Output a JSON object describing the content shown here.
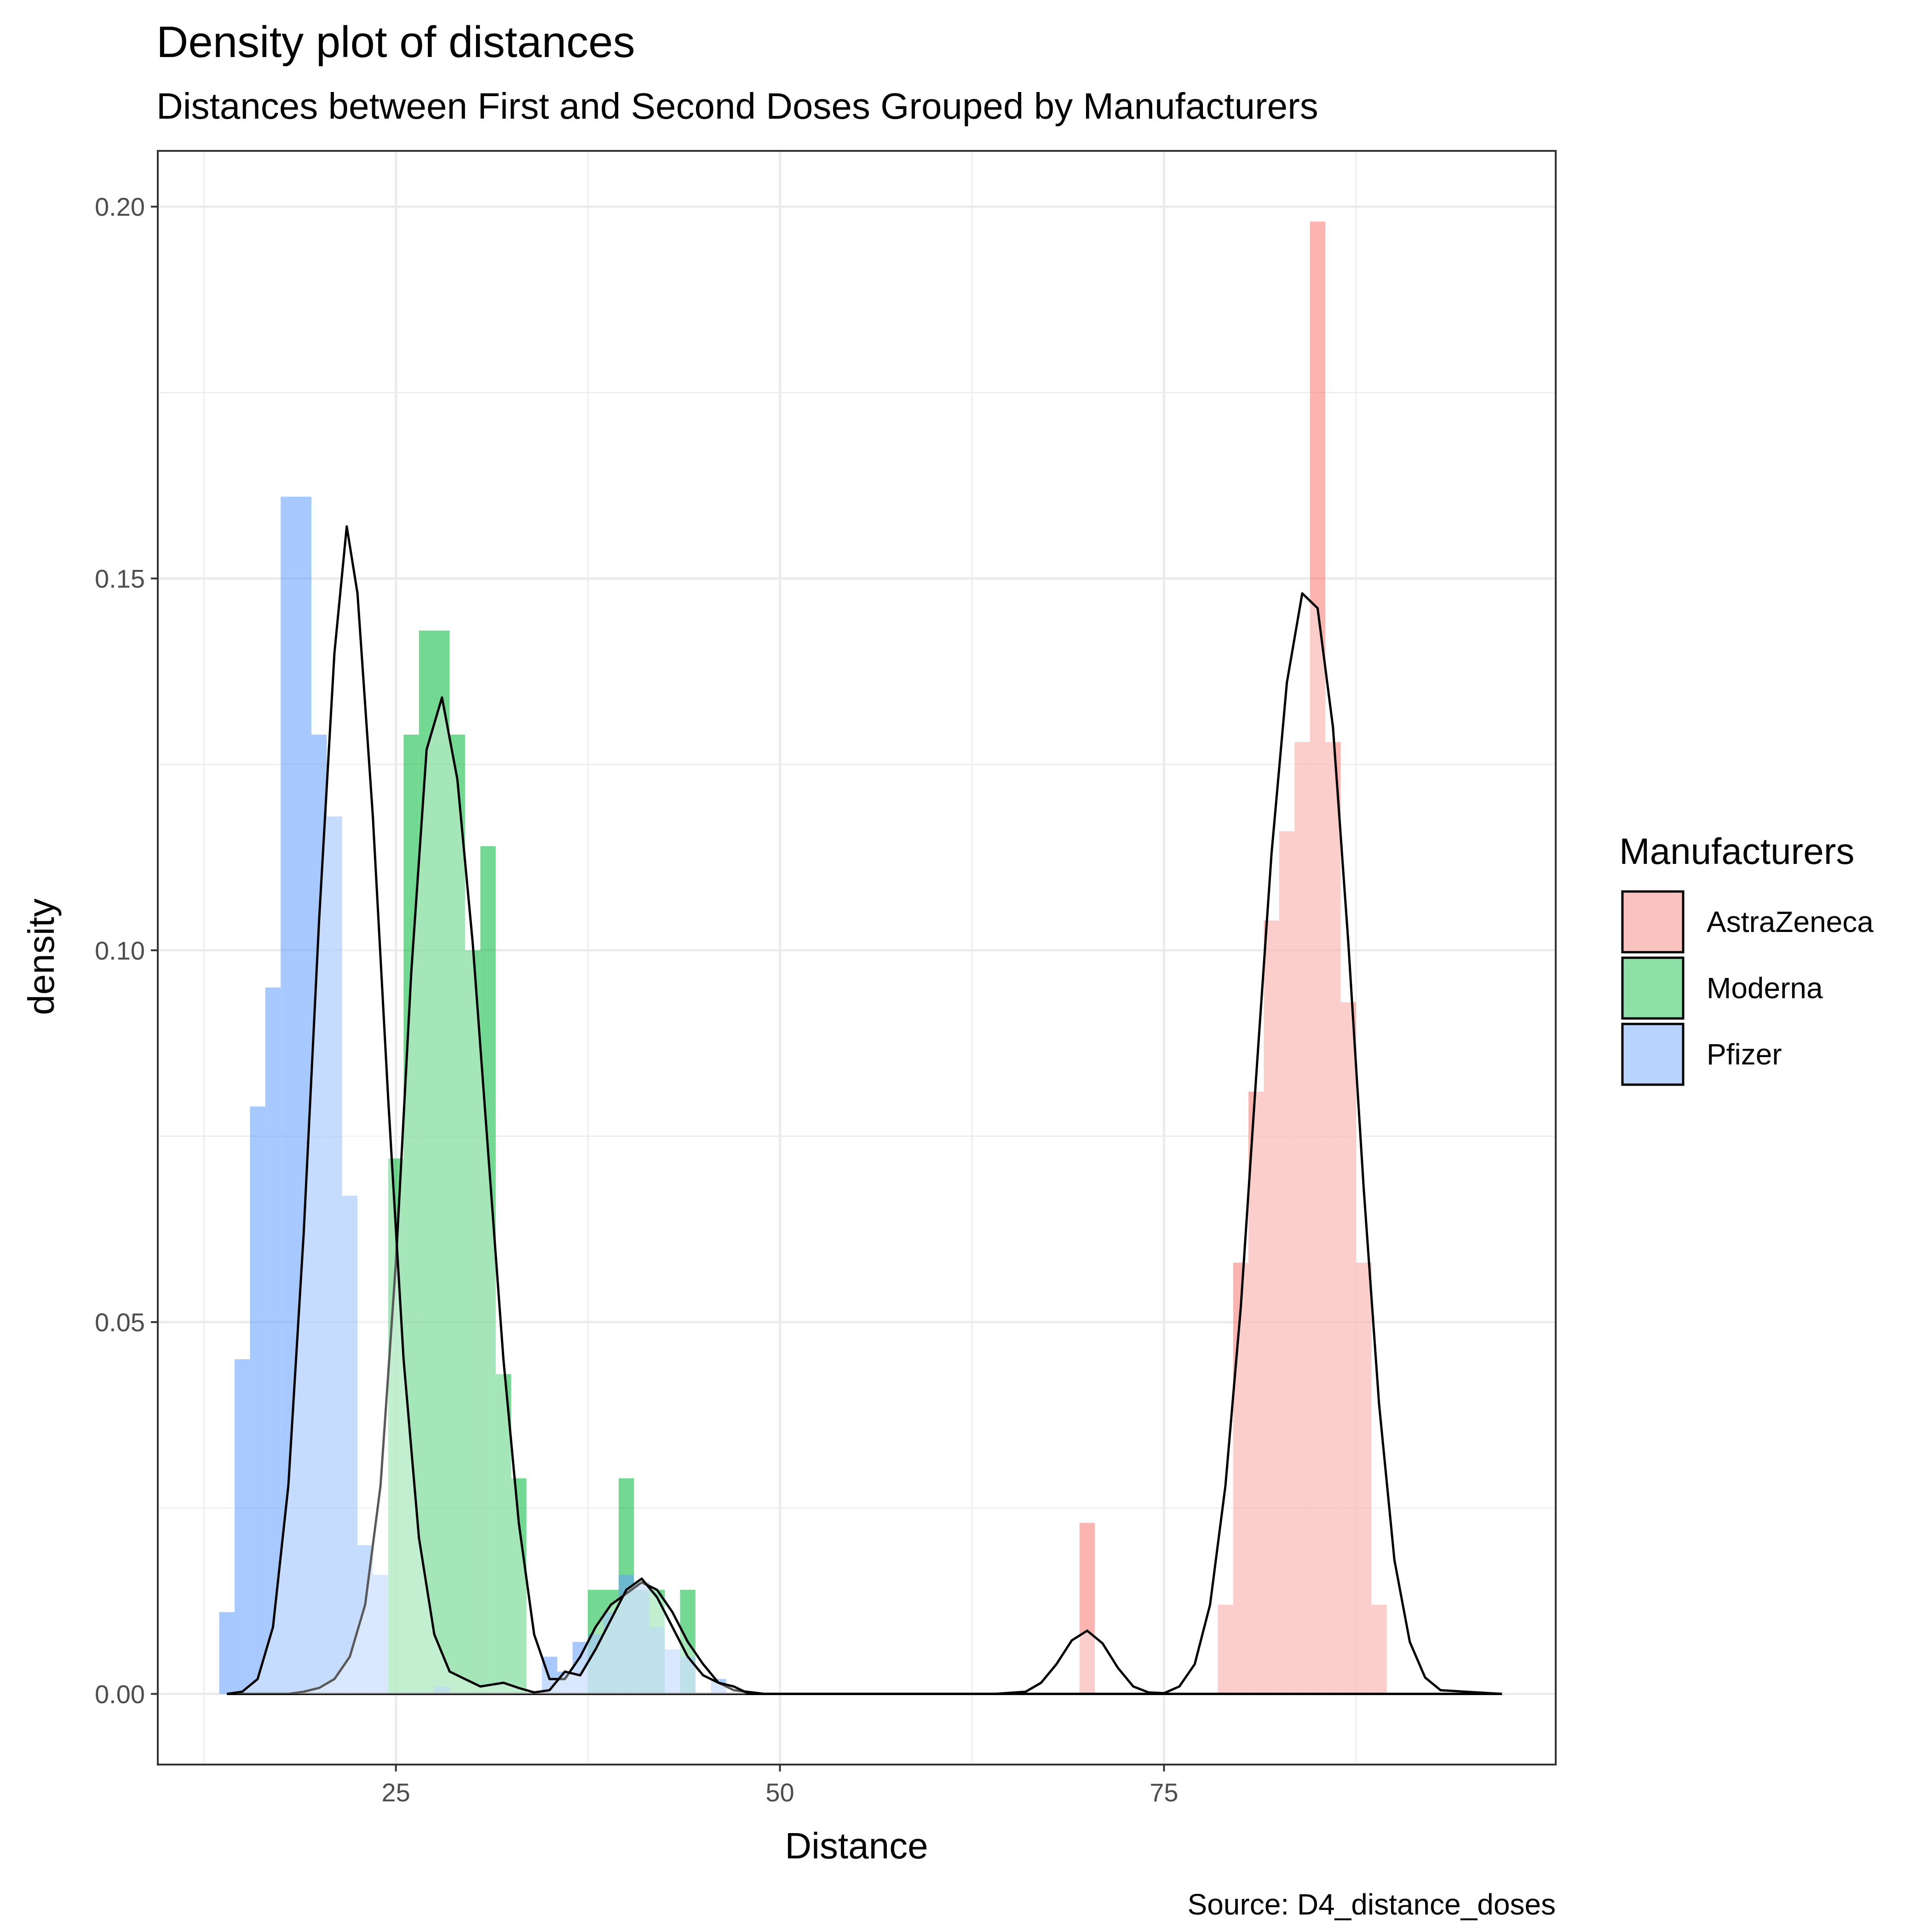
{
  "chart_data": {
    "type": "area",
    "title": "Density plot of distances",
    "subtitle": "Distances between First and Second Doses Grouped by Manufacturers",
    "xlabel": "Distance",
    "ylabel": "density",
    "caption": "Source: D4_distance_doses",
    "xlim": [
      9.5,
      100.5
    ],
    "ylim": [
      -0.0095,
      0.2075
    ],
    "x_ticks": [
      25,
      50,
      75
    ],
    "x_tick_labels": [
      "25",
      "50",
      "75"
    ],
    "y_ticks": [
      0,
      0.05,
      0.1,
      0.15,
      0.2
    ],
    "y_tick_labels": [
      "0.00",
      "0.05",
      "0.10",
      "0.15",
      "0.20"
    ],
    "grid": true,
    "legend": {
      "title": "Manufacturers",
      "position": "right"
    },
    "series": [
      {
        "name": "AstraZeneca",
        "color": "#F8766D",
        "histogram": {
          "bin_width": 1,
          "bins": [
            [
              70,
              0.023
            ],
            [
              79,
              0.012
            ],
            [
              80,
              0.058
            ],
            [
              81,
              0.081
            ],
            [
              82,
              0.104
            ],
            [
              83,
              0.116
            ],
            [
              84,
              0.128
            ],
            [
              85,
              0.198
            ],
            [
              86,
              0.128
            ],
            [
              87,
              0.093
            ],
            [
              88,
              0.058
            ],
            [
              89,
              0.012
            ]
          ]
        },
        "density": [
          [
            14,
            0
          ],
          [
            64,
            0
          ],
          [
            66,
            0.0003
          ],
          [
            67,
            0.0015
          ],
          [
            68,
            0.004
          ],
          [
            69,
            0.0072
          ],
          [
            70,
            0.0085
          ],
          [
            71,
            0.0068
          ],
          [
            72,
            0.0035
          ],
          [
            73,
            0.001
          ],
          [
            74,
            0.0002
          ],
          [
            75,
            0.0001
          ],
          [
            76,
            0.001
          ],
          [
            77,
            0.004
          ],
          [
            78,
            0.012
          ],
          [
            79,
            0.028
          ],
          [
            80,
            0.052
          ],
          [
            81,
            0.083
          ],
          [
            82,
            0.113
          ],
          [
            83,
            0.136
          ],
          [
            84,
            0.148
          ],
          [
            85,
            0.146
          ],
          [
            86,
            0.13
          ],
          [
            87,
            0.101
          ],
          [
            88,
            0.068
          ],
          [
            89,
            0.039
          ],
          [
            90,
            0.018
          ],
          [
            91,
            0.007
          ],
          [
            92,
            0.0022
          ],
          [
            93,
            0.0005
          ],
          [
            97,
            0
          ]
        ]
      },
      {
        "name": "Moderna",
        "color": "#00BA38",
        "histogram": {
          "bin_width": 1,
          "bins": [
            [
              25,
              0.072
            ],
            [
              26,
              0.129
            ],
            [
              27,
              0.143
            ],
            [
              28,
              0.143
            ],
            [
              29,
              0.129
            ],
            [
              30,
              0.1
            ],
            [
              31,
              0.114
            ],
            [
              32,
              0.043
            ],
            [
              33,
              0.029
            ],
            [
              38,
              0.014
            ],
            [
              39,
              0.014
            ],
            [
              40,
              0.029
            ],
            [
              41,
              0.014
            ],
            [
              42,
              0.014
            ],
            [
              44,
              0.014
            ]
          ]
        },
        "density": [
          [
            14,
            0
          ],
          [
            18,
            0
          ],
          [
            19,
            0.0003
          ],
          [
            20,
            0.0008
          ],
          [
            21,
            0.002
          ],
          [
            22,
            0.005
          ],
          [
            23,
            0.012
          ],
          [
            24,
            0.028
          ],
          [
            25,
            0.058
          ],
          [
            26,
            0.097
          ],
          [
            27,
            0.127
          ],
          [
            28,
            0.134
          ],
          [
            29,
            0.123
          ],
          [
            30,
            0.101
          ],
          [
            31,
            0.073
          ],
          [
            32,
            0.045
          ],
          [
            33,
            0.023
          ],
          [
            34,
            0.008
          ],
          [
            35,
            0.002
          ],
          [
            36,
            0.002
          ],
          [
            37,
            0.005
          ],
          [
            38,
            0.009
          ],
          [
            39,
            0.012
          ],
          [
            40,
            0.0135
          ],
          [
            41,
            0.015
          ],
          [
            42,
            0.014
          ],
          [
            43,
            0.011
          ],
          [
            44,
            0.007
          ],
          [
            45,
            0.004
          ],
          [
            46,
            0.0015
          ],
          [
            47,
            0.0005
          ],
          [
            49,
            0
          ],
          [
            97,
            0
          ]
        ]
      },
      {
        "name": "Pfizer",
        "color": "#619CFF",
        "histogram": {
          "bin_width": 1,
          "bins": [
            [
              14,
              0.011
            ],
            [
              15,
              0.045
            ],
            [
              16,
              0.079
            ],
            [
              17,
              0.095
            ],
            [
              18,
              0.161
            ],
            [
              19,
              0.161
            ],
            [
              20,
              0.129
            ],
            [
              21,
              0.118
            ],
            [
              22,
              0.067
            ],
            [
              23,
              0.02
            ],
            [
              24,
              0.016
            ],
            [
              28,
              0.001
            ],
            [
              35,
              0.005
            ],
            [
              36,
              0.003
            ],
            [
              37,
              0.007
            ],
            [
              38,
              0.008
            ],
            [
              39,
              0.011
            ],
            [
              40,
              0.016
            ],
            [
              41,
              0.015
            ],
            [
              42,
              0.009
            ],
            [
              43,
              0.006
            ],
            [
              44,
              0.005
            ],
            [
              46,
              0.002
            ]
          ]
        },
        "density": [
          [
            14,
            0
          ],
          [
            15,
            0.0003
          ],
          [
            16,
            0.002
          ],
          [
            17,
            0.009
          ],
          [
            18,
            0.028
          ],
          [
            19,
            0.062
          ],
          [
            20,
            0.104
          ],
          [
            21,
            0.14
          ],
          [
            21.8,
            0.157
          ],
          [
            22.5,
            0.148
          ],
          [
            23.5,
            0.118
          ],
          [
            24.5,
            0.08
          ],
          [
            25.5,
            0.045
          ],
          [
            26.5,
            0.021
          ],
          [
            27.5,
            0.008
          ],
          [
            28.5,
            0.003
          ],
          [
            29.5,
            0.002
          ],
          [
            30.5,
            0.001
          ],
          [
            32,
            0.0015
          ],
          [
            33,
            0.0008
          ],
          [
            34,
            0.0002
          ],
          [
            35,
            0.0005
          ],
          [
            36,
            0.003
          ],
          [
            37,
            0.0025
          ],
          [
            38,
            0.006
          ],
          [
            39,
            0.01
          ],
          [
            40,
            0.014
          ],
          [
            41,
            0.0155
          ],
          [
            42,
            0.013
          ],
          [
            43,
            0.009
          ],
          [
            44,
            0.005
          ],
          [
            45,
            0.0025
          ],
          [
            46,
            0.0015
          ],
          [
            47,
            0.001
          ],
          [
            48,
            0
          ],
          [
            97,
            0
          ]
        ]
      }
    ]
  }
}
